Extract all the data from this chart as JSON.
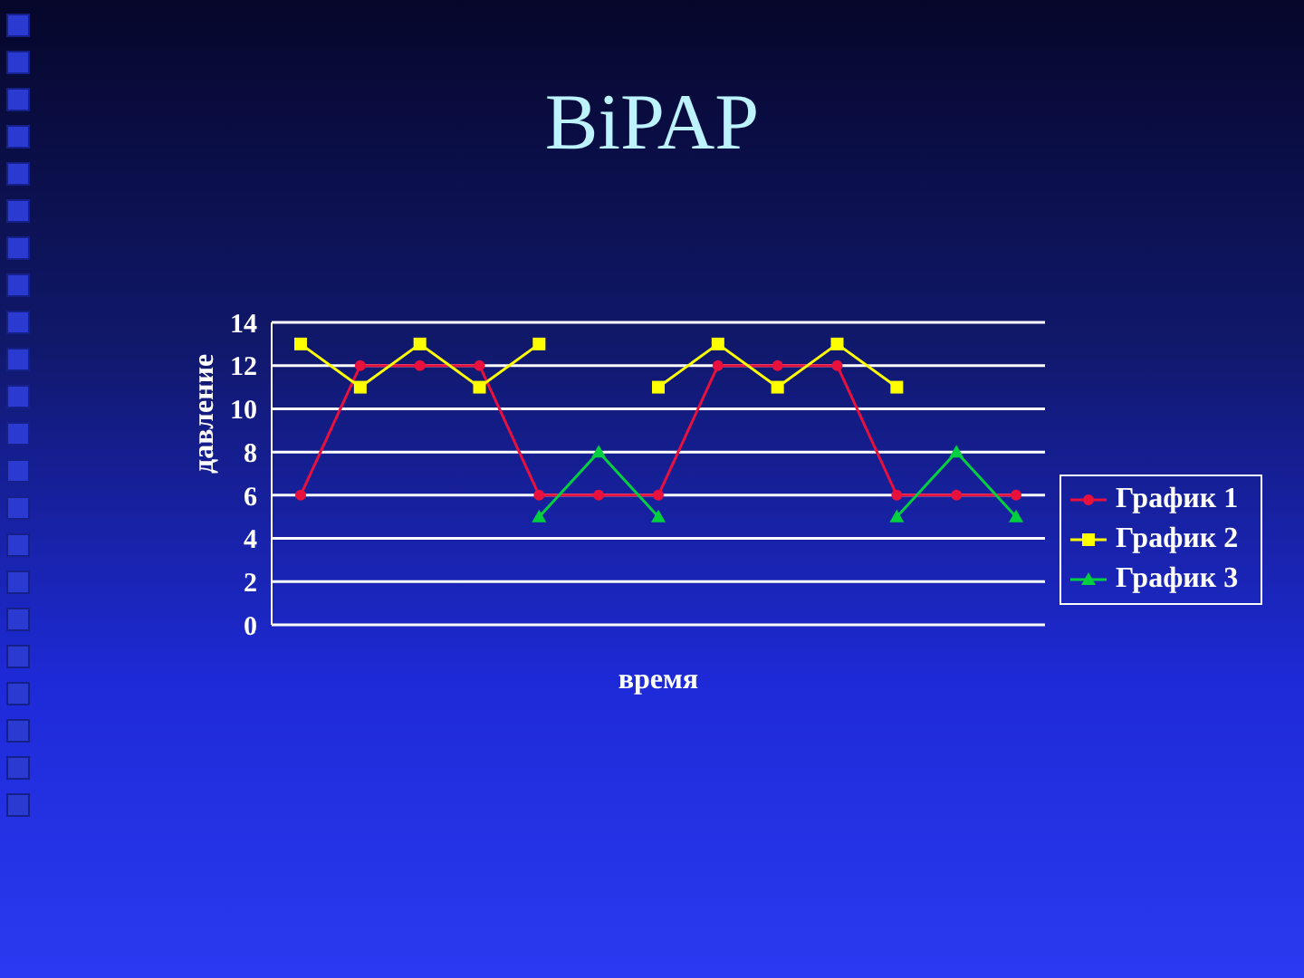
{
  "chart_data": {
    "type": "line",
    "title": "BiPAP",
    "xlabel": "время",
    "ylabel": "давление",
    "categories": [
      null,
      null,
      null,
      null,
      null,
      null,
      null,
      null,
      null,
      null,
      null,
      null,
      null
    ],
    "series": [
      {
        "name": "График 1",
        "color": "#e8103c",
        "marker": "circle",
        "values": [
          6,
          12,
          12,
          12,
          6,
          6,
          6,
          12,
          12,
          12,
          6,
          6,
          6
        ]
      },
      {
        "name": "График 2",
        "color": "#ffff00",
        "marker": "square",
        "values": [
          13,
          11,
          13,
          11,
          13,
          null,
          11,
          13,
          11,
          13,
          11,
          null,
          null
        ]
      },
      {
        "name": "График 3",
        "color": "#00d040",
        "marker": "triangle",
        "values": [
          null,
          null,
          null,
          null,
          5,
          8,
          5,
          null,
          null,
          null,
          5,
          8,
          5
        ]
      }
    ],
    "ylim": [
      0,
      14
    ],
    "yticks": [
      0,
      2,
      4,
      6,
      8,
      10,
      12,
      14
    ],
    "grid": "y",
    "legend": "right"
  }
}
